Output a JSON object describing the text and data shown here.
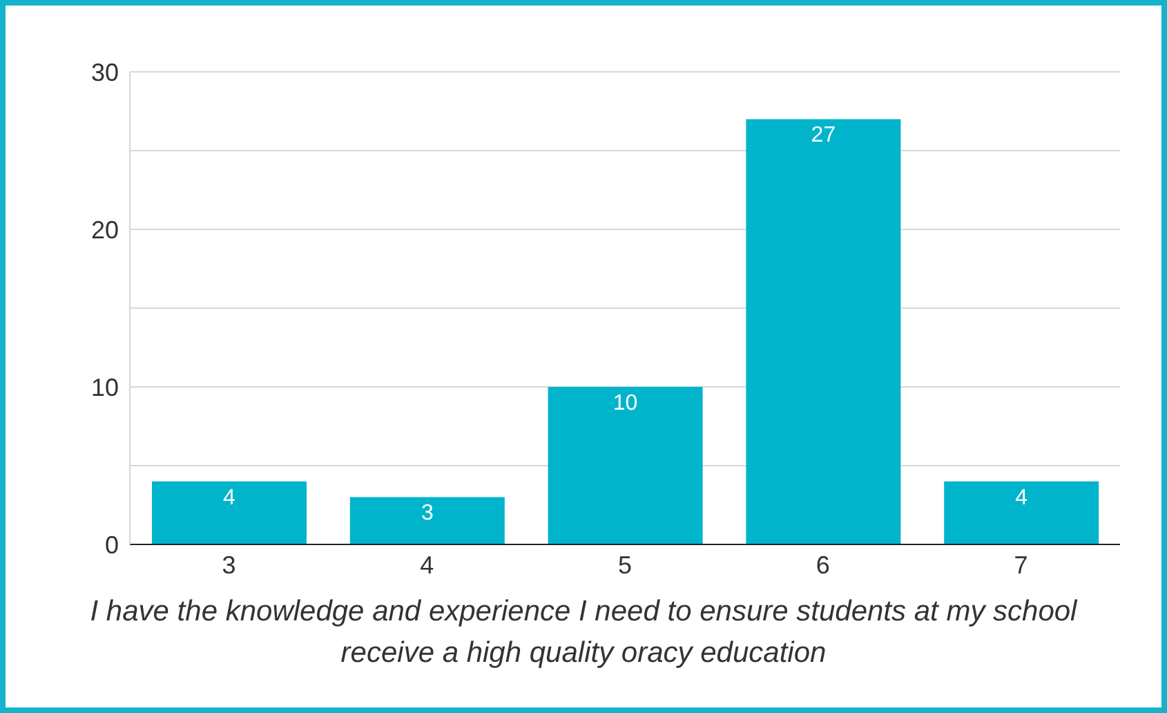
{
  "chart_data": {
    "type": "bar",
    "xlabel": "I have the knowledge and experience I need to ensure students at my school receive a high quality oracy education",
    "categories": [
      "3",
      "4",
      "5",
      "6",
      "7"
    ],
    "values": [
      4,
      3,
      10,
      27,
      4
    ],
    "color": "#00b4cc",
    "ylim": [
      0,
      30
    ],
    "yticks": [
      0,
      {
        "value": 5,
        "label": null
      },
      10,
      {
        "value": 15,
        "label": null
      },
      20,
      {
        "value": 25,
        "label": null
      },
      30
    ],
    "grid": "y",
    "data_labels": true
  }
}
